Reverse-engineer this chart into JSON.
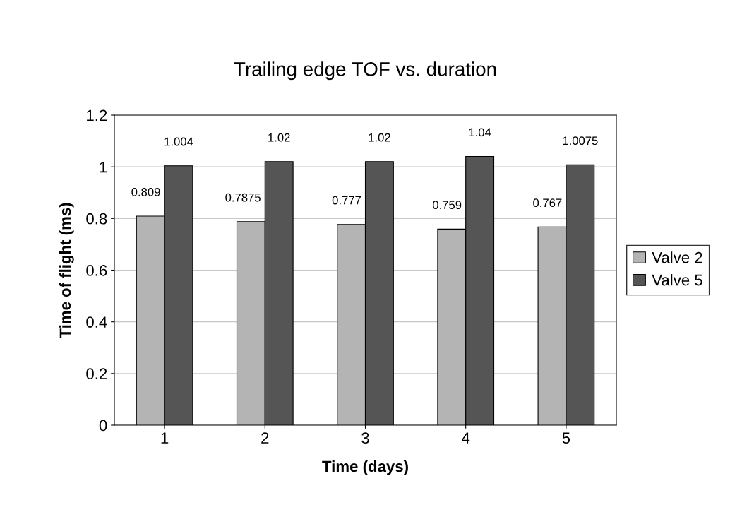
{
  "chart_data": {
    "type": "bar",
    "title": "Trailing edge TOF vs. duration",
    "xlabel": "Time (days)",
    "ylabel": "Time of flight (ms)",
    "categories": [
      "1",
      "2",
      "3",
      "4",
      "5"
    ],
    "series": [
      {
        "name": "Valve 2",
        "color": "#b4b4b4",
        "values": [
          0.809,
          0.7875,
          0.777,
          0.759,
          0.767
        ]
      },
      {
        "name": "Valve 5",
        "color": "#555555",
        "values": [
          1.004,
          1.02,
          1.02,
          1.04,
          1.0075
        ]
      }
    ],
    "ylim": [
      0,
      1.2
    ],
    "yticks": [
      0,
      0.2,
      0.4,
      0.6,
      0.8,
      1,
      1.2
    ],
    "grid": "y",
    "legend": "right",
    "data_labels": true
  }
}
